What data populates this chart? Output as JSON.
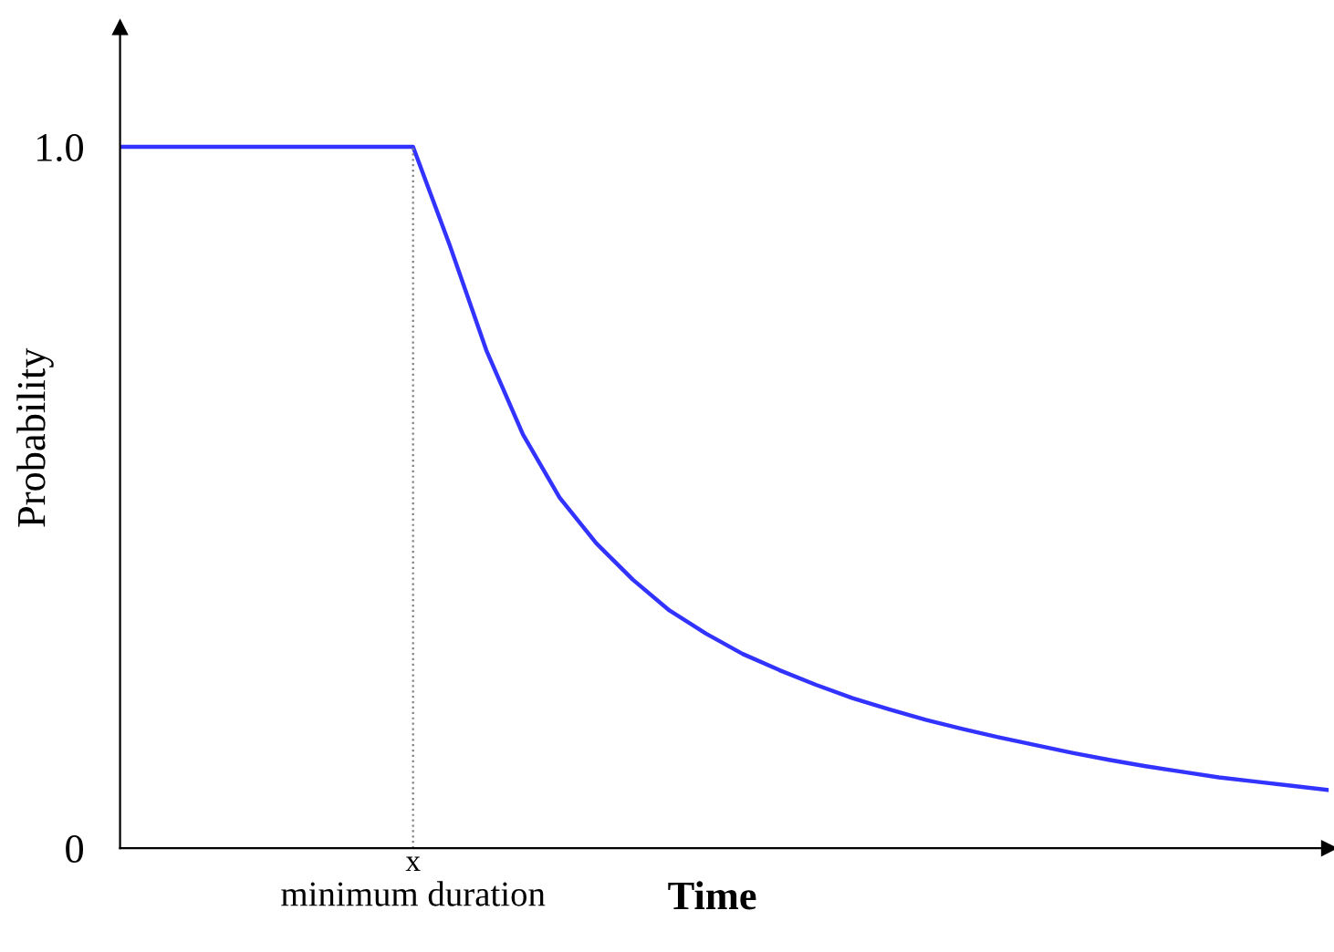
{
  "chart_data": {
    "type": "line",
    "xlabel": "Time",
    "ylabel": "Probability",
    "categories": [
      null,
      null,
      null,
      null,
      null,
      null,
      null,
      null,
      null,
      null,
      null,
      null,
      null,
      null,
      null,
      null,
      null,
      null,
      null,
      null,
      null,
      null,
      null,
      null,
      null,
      null,
      null,
      null,
      null,
      null,
      null,
      null,
      null,
      null
    ],
    "series": [
      {
        "color": "#3333ff",
        "values": [
          1.0,
          1.0,
          1.0,
          1.0,
          1.0,
          1.0,
          1.0,
          1.0,
          1.0,
          0.86,
          0.71,
          0.59,
          0.5,
          0.435,
          0.383,
          0.339,
          0.306,
          0.277,
          0.254,
          0.233,
          0.214,
          0.198,
          0.183,
          0.17,
          0.158,
          0.147,
          0.136,
          0.126,
          0.117,
          0.109,
          0.101,
          0.095,
          0.089,
          0.083
        ]
      }
    ],
    "ylim": [
      0,
      1.17
    ],
    "yticks": [
      0,
      {
        "value": 1.0,
        "label": "1.0"
      }
    ],
    "annotations": [
      "x",
      "minimum duration"
    ],
    "grid": false,
    "legend": false
  }
}
